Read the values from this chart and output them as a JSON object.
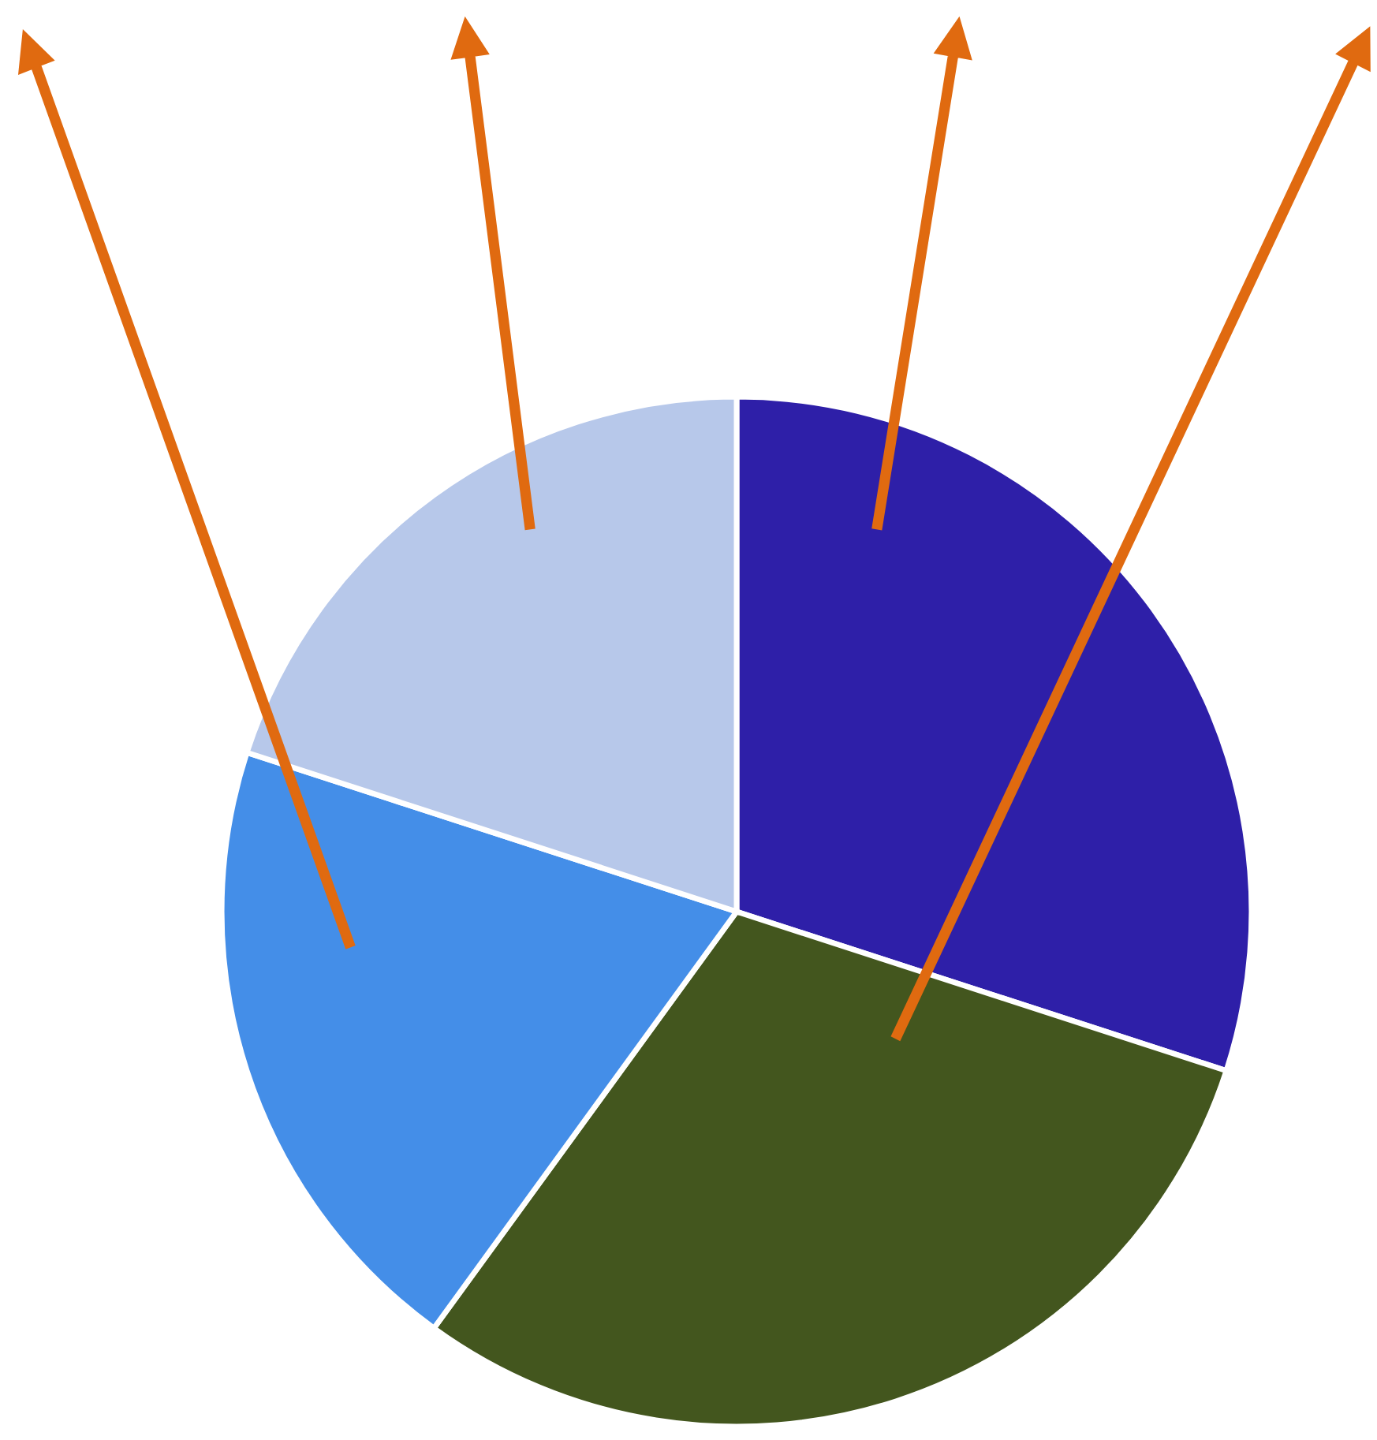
{
  "chart_data": {
    "type": "pie",
    "categories": [
      null,
      null,
      null,
      null
    ],
    "values": [
      30,
      30,
      20,
      20
    ],
    "colors": [
      "#2e1fa8",
      "#43561e",
      "#448ee8",
      "#b7c8ea"
    ]
  }
}
